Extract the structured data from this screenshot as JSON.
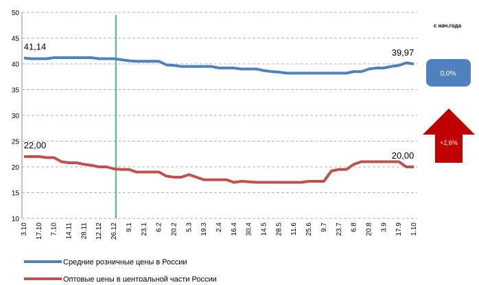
{
  "chart_data": {
    "type": "line",
    "categories": [
      "3.10",
      null,
      "17.10",
      null,
      "7.10",
      null,
      "14.11",
      null,
      "28.11",
      null,
      "12.12",
      null,
      "26.12",
      null,
      "9.1",
      null,
      "23.1",
      null,
      "6.2",
      null,
      "20.2",
      null,
      "5.3",
      null,
      "19.3",
      null,
      "2.4",
      null,
      "16.4",
      null,
      "30.4",
      null,
      "14.5",
      null,
      "28.5",
      null,
      "11.6",
      null,
      "25.6",
      null,
      "9.7",
      null,
      "23.7",
      null,
      "6.8",
      null,
      "20.8",
      null,
      "3.9",
      null,
      "17.9",
      null,
      "1.10"
    ],
    "series": [
      {
        "name": "Средние розничные цены в России",
        "color": "#4f81bd",
        "values": [
          41.14,
          41.0,
          41.0,
          41.0,
          41.2,
          41.2,
          41.2,
          41.2,
          41.2,
          41.2,
          41.0,
          41.0,
          41.0,
          40.8,
          40.6,
          40.5,
          40.5,
          40.5,
          40.5,
          39.8,
          39.7,
          39.5,
          39.5,
          39.5,
          39.5,
          39.5,
          39.2,
          39.2,
          39.2,
          39.0,
          39.0,
          39.0,
          38.7,
          38.5,
          38.4,
          38.2,
          38.2,
          38.2,
          38.2,
          38.2,
          38.2,
          38.2,
          38.2,
          38.2,
          38.5,
          38.5,
          39.0,
          39.2,
          39.2,
          39.5,
          39.7,
          40.2,
          39.97
        ],
        "value_labels": [
          "41,14",
          null,
          null,
          null,
          null,
          null,
          null,
          null,
          null,
          null,
          null,
          null,
          null,
          null,
          null,
          null,
          null,
          null,
          null,
          null,
          null,
          null,
          null,
          null,
          null,
          null,
          null,
          null,
          null,
          null,
          null,
          null,
          null,
          null,
          null,
          null,
          null,
          null,
          null,
          null,
          null,
          null,
          null,
          null,
          null,
          null,
          null,
          null,
          null,
          null,
          null,
          null,
          "39,97"
        ]
      },
      {
        "name": "Оптовые цены в центральной части России",
        "color": "#c0504d",
        "values": [
          22.0,
          22.0,
          22.0,
          21.8,
          21.8,
          21.0,
          20.8,
          20.8,
          20.5,
          20.3,
          20.0,
          20.0,
          19.6,
          19.5,
          19.5,
          19.0,
          19.0,
          19.0,
          19.0,
          18.2,
          18.0,
          18.0,
          18.5,
          18.0,
          17.5,
          17.5,
          17.5,
          17.5,
          17.0,
          17.2,
          17.1,
          17.0,
          17.0,
          17.0,
          17.0,
          17.0,
          17.0,
          17.0,
          17.2,
          17.2,
          17.2,
          19.2,
          19.5,
          19.5,
          20.5,
          21.0,
          21.0,
          21.0,
          21.0,
          21.0,
          21.0,
          20.0,
          20.0
        ],
        "value_labels": [
          "22,00",
          null,
          null,
          null,
          null,
          null,
          null,
          null,
          null,
          null,
          null,
          null,
          null,
          null,
          null,
          null,
          null,
          null,
          null,
          null,
          null,
          null,
          null,
          null,
          null,
          null,
          null,
          null,
          null,
          null,
          null,
          null,
          null,
          null,
          null,
          null,
          null,
          null,
          null,
          null,
          null,
          null,
          null,
          null,
          null,
          null,
          null,
          null,
          null,
          null,
          null,
          null,
          "20,00"
        ]
      }
    ],
    "ylim": [
      10,
      50
    ],
    "yticks": [
      10,
      15,
      20,
      25,
      30,
      35,
      40,
      45,
      50
    ],
    "grid": true,
    "ytd_header": "с нач.года",
    "ytd_changes": [
      {
        "value": 0.0,
        "label": "0,0%",
        "color": "#4f81bd"
      },
      {
        "value": 2.6,
        "label": "+2,6%",
        "color": "#c00000"
      }
    ]
  }
}
